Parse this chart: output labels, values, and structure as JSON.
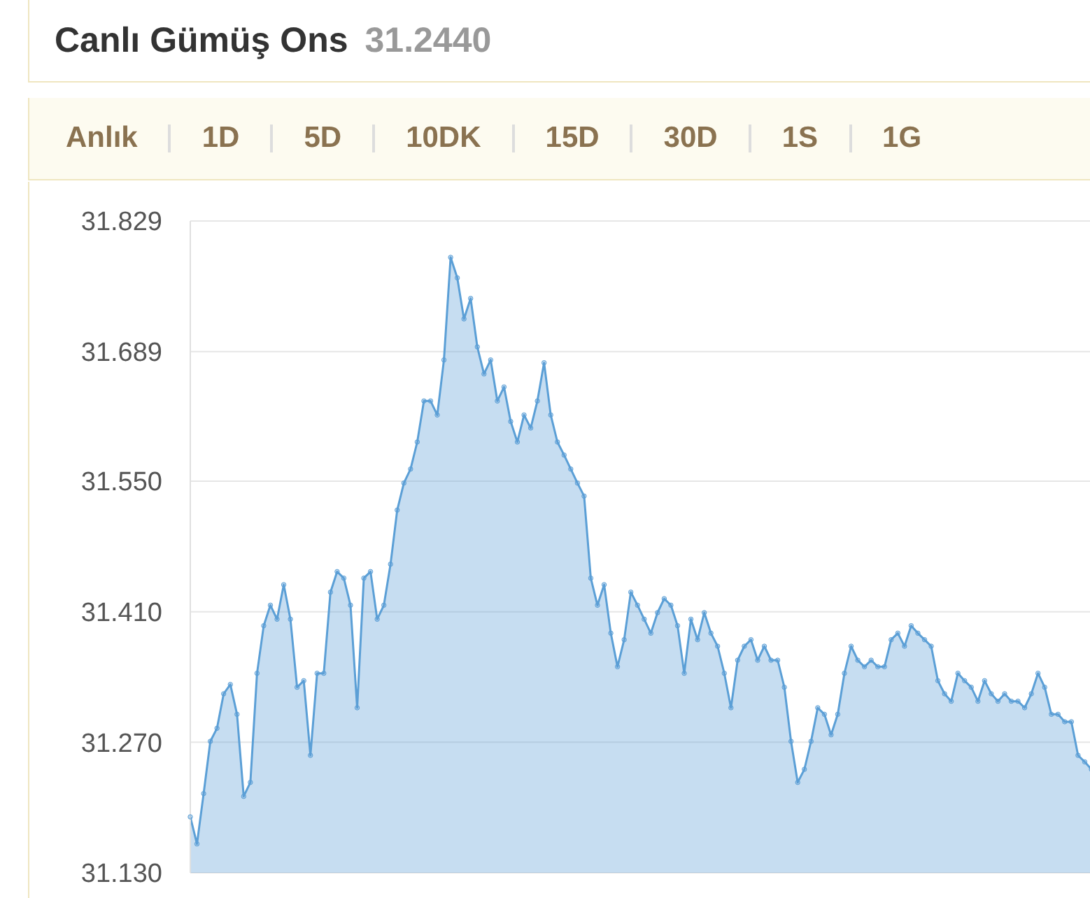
{
  "chart_data": {
    "type": "area",
    "title": "Canlı Gümüş Ons",
    "subtitle": "31.2440",
    "annotations": [
      "Anlık",
      "1D",
      "5D",
      "10DK",
      "15D",
      "30D",
      "1S",
      "1G"
    ],
    "categories": [
      null,
      null,
      null,
      null,
      null,
      null,
      null,
      null,
      null,
      null,
      null,
      null,
      null,
      null,
      null,
      null,
      null,
      null,
      null,
      null,
      null,
      null,
      null,
      null,
      null,
      null,
      null,
      null,
      null,
      null,
      null,
      null,
      null,
      null,
      null,
      null,
      null,
      null,
      null,
      null,
      null,
      null,
      null,
      null,
      null,
      null,
      null,
      null,
      null,
      null,
      null,
      null,
      null,
      null,
      null,
      null,
      null,
      null,
      null,
      null,
      null,
      null,
      null,
      null,
      null,
      null,
      null,
      null,
      null,
      null,
      null,
      null,
      null,
      null,
      null,
      null,
      null,
      null,
      null,
      null,
      null,
      null,
      null,
      null,
      null,
      null,
      null,
      null,
      null,
      null,
      null,
      null,
      null,
      null,
      null,
      null,
      null,
      null,
      null,
      null,
      null,
      null,
      null,
      null,
      null,
      null,
      null,
      null,
      null,
      null,
      null,
      null,
      null,
      null,
      null,
      null,
      null,
      null,
      null,
      null,
      null,
      null,
      null,
      null,
      null,
      null,
      null,
      null,
      null,
      null,
      null,
      null,
      null,
      null,
      null,
      null
    ],
    "series": [
      {
        "color": "#5b9fd6",
        "values": [
          31.19,
          31.161,
          31.215,
          31.271,
          31.285,
          31.322,
          31.332,
          31.3,
          31.212,
          31.227,
          31.344,
          31.395,
          31.417,
          31.402,
          31.439,
          31.402,
          31.329,
          31.336,
          31.256,
          31.344,
          31.344,
          31.431,
          31.453,
          31.446,
          31.417,
          31.307,
          31.446,
          31.453,
          31.402,
          31.417,
          31.461,
          31.519,
          31.548,
          31.563,
          31.592,
          31.636,
          31.636,
          31.621,
          31.68,
          31.79,
          31.768,
          31.724,
          31.746,
          31.694,
          31.665,
          31.68,
          31.636,
          31.651,
          31.614,
          31.592,
          31.621,
          31.607,
          31.636,
          31.677,
          31.621,
          31.592,
          31.578,
          31.563,
          31.548,
          31.534,
          31.446,
          31.417,
          31.439,
          31.387,
          31.351,
          31.38,
          31.431,
          31.417,
          31.402,
          31.387,
          31.409,
          31.424,
          31.417,
          31.395,
          31.344,
          31.402,
          31.38,
          31.409,
          31.387,
          31.373,
          31.344,
          31.307,
          31.358,
          31.373,
          31.38,
          31.358,
          31.373,
          31.358,
          31.358,
          31.329,
          31.271,
          31.227,
          31.241,
          31.271,
          31.307,
          31.3,
          31.278,
          31.3,
          31.344,
          31.373,
          31.358,
          31.351,
          31.358,
          31.351,
          31.351,
          31.38,
          31.387,
          31.373,
          31.395,
          31.387,
          31.38,
          31.373,
          31.336,
          31.322,
          31.314,
          31.344,
          31.336,
          31.329,
          31.314,
          31.336,
          31.322,
          31.314,
          31.322,
          31.314,
          31.314,
          31.307,
          31.322,
          31.344,
          31.329,
          31.3,
          31.3,
          31.292,
          31.292,
          31.256,
          31.249,
          31.241
        ]
      }
    ],
    "ylim": [
      31.13,
      31.829
    ],
    "yticks": [
      {
        "value": 31.13,
        "label": "31.130"
      },
      {
        "value": 31.27,
        "label": "31.270"
      },
      {
        "value": 31.41,
        "label": "31.410"
      },
      {
        "value": 31.55,
        "label": "31.550"
      },
      31.689,
      31.829
    ],
    "grid": "y",
    "marker": "circle",
    "tick_labels": "y"
  }
}
